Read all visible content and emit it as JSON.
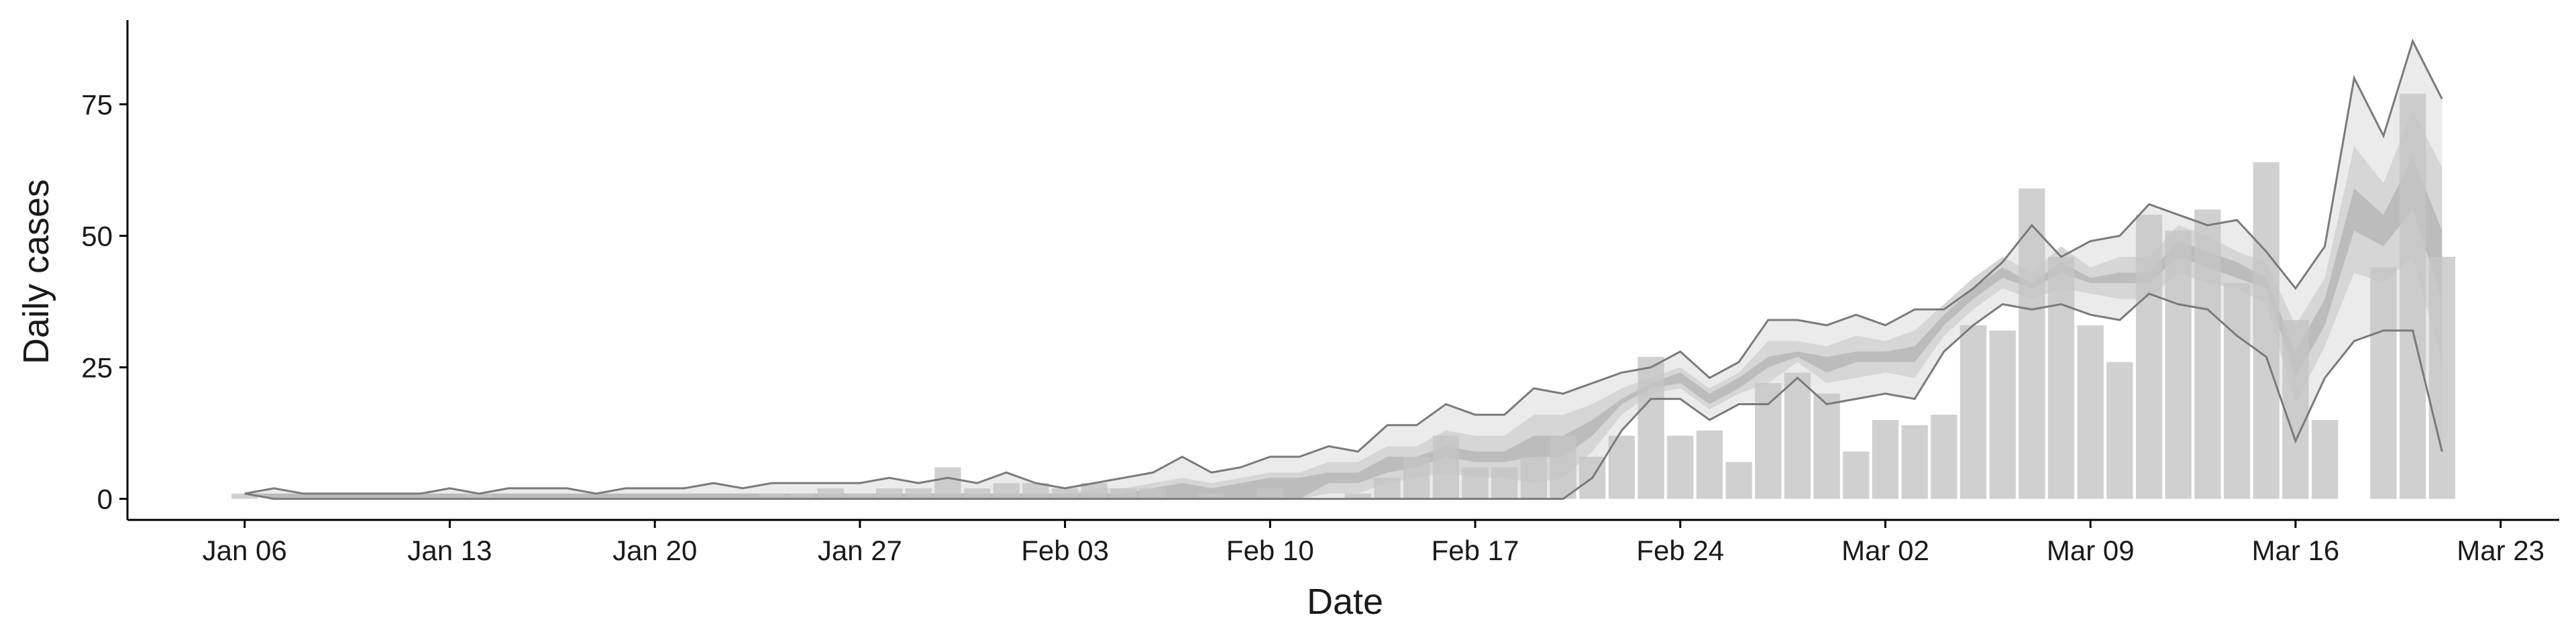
{
  "chart_data": {
    "type": "bar",
    "x_label": "Date",
    "y_label": "Daily cases",
    "x": [
      "Jan 06",
      "Jan 07",
      "Jan 08",
      "Jan 09",
      "Jan 10",
      "Jan 11",
      "Jan 12",
      "Jan 13",
      "Jan 14",
      "Jan 15",
      "Jan 16",
      "Jan 17",
      "Jan 18",
      "Jan 19",
      "Jan 20",
      "Jan 21",
      "Jan 22",
      "Jan 23",
      "Jan 24",
      "Jan 25",
      "Jan 26",
      "Jan 27",
      "Jan 28",
      "Jan 29",
      "Jan 30",
      "Jan 31",
      "Feb 01",
      "Feb 02",
      "Feb 03",
      "Feb 04",
      "Feb 05",
      "Feb 06",
      "Feb 07",
      "Feb 08",
      "Feb 09",
      "Feb 10",
      "Feb 11",
      "Feb 12",
      "Feb 13",
      "Feb 14",
      "Feb 15",
      "Feb 16",
      "Feb 17",
      "Feb 18",
      "Feb 19",
      "Feb 20",
      "Feb 21",
      "Feb 22",
      "Feb 23",
      "Feb 24",
      "Feb 25",
      "Feb 26",
      "Feb 27",
      "Feb 28",
      "Feb 29",
      "Mar 01",
      "Mar 02",
      "Mar 03",
      "Mar 04",
      "Mar 05",
      "Mar 06",
      "Mar 07",
      "Mar 08",
      "Mar 09",
      "Mar 10",
      "Mar 11",
      "Mar 12",
      "Mar 13",
      "Mar 14",
      "Mar 15",
      "Mar 16",
      "Mar 17",
      "Mar 18",
      "Mar 19",
      "Mar 20",
      "Mar 21"
    ],
    "values": [
      1,
      0,
      0,
      0,
      0,
      0,
      0,
      0,
      1,
      0,
      0,
      0,
      0,
      0,
      0,
      0,
      0,
      0,
      1,
      1,
      2,
      1,
      2,
      2,
      6,
      2,
      3,
      3,
      2,
      3,
      2,
      2,
      0,
      1,
      0,
      2,
      0,
      0,
      1,
      4,
      8,
      12,
      6,
      6,
      8,
      12,
      8,
      12,
      27,
      12,
      13,
      7,
      22,
      24,
      20,
      9,
      15,
      14,
      16,
      33,
      32,
      59,
      46,
      33,
      26,
      54,
      51,
      55,
      41,
      64,
      34,
      15,
      0,
      44,
      77,
      46
    ],
    "color": "#c4c4c4",
    "bands": [
      {
        "color": "#ebebeb",
        "line_color": "#7a7a7a",
        "lower": [
          1,
          0,
          0,
          0,
          0,
          0,
          0,
          0,
          0,
          0,
          0,
          0,
          0,
          0,
          0,
          0,
          0,
          0,
          0,
          0,
          0,
          0,
          0,
          0,
          0,
          0,
          0,
          0,
          0,
          0,
          0,
          0,
          0,
          0,
          0,
          0,
          0,
          0,
          0,
          0,
          0,
          0,
          0,
          0,
          0,
          0,
          4,
          13,
          19,
          19,
          15,
          18,
          18,
          23,
          18,
          19,
          20,
          19,
          28,
          33,
          37,
          36,
          37,
          35,
          34,
          39,
          37,
          36,
          31,
          27,
          11,
          23,
          30,
          32,
          32,
          9
        ],
        "upper": [
          1,
          2,
          1,
          1,
          1,
          1,
          1,
          2,
          1,
          2,
          2,
          2,
          1,
          2,
          2,
          2,
          3,
          2,
          3,
          3,
          3,
          3,
          4,
          3,
          4,
          3,
          5,
          3,
          2,
          3,
          4,
          5,
          8,
          5,
          6,
          8,
          8,
          10,
          9,
          14,
          14,
          18,
          16,
          16,
          21,
          20,
          22,
          24,
          25,
          28,
          23,
          26,
          34,
          34,
          33,
          35,
          33,
          36,
          36,
          40,
          45,
          52,
          46,
          49,
          50,
          56,
          54,
          52,
          53,
          47,
          40,
          48,
          80,
          69,
          87,
          76
        ]
      },
      {
        "color": "#d6d6d6",
        "lower": [
          1,
          0,
          0,
          0,
          0,
          0,
          0,
          0,
          0,
          0,
          0,
          0,
          0,
          0,
          0,
          0,
          0,
          0,
          0,
          0,
          0,
          0,
          0,
          0,
          0,
          0,
          0,
          0,
          0,
          0,
          0,
          0,
          0,
          0,
          0,
          0,
          0,
          1,
          1,
          3,
          4,
          5,
          4,
          4,
          3,
          4,
          9,
          16,
          20,
          21,
          17,
          20,
          22,
          26,
          22,
          23,
          24,
          23,
          31,
          36,
          40,
          38,
          40,
          39,
          38,
          38,
          43,
          41,
          40,
          37,
          18,
          29,
          43,
          41,
          46,
          26
        ],
        "upper": [
          1,
          1,
          1,
          1,
          1,
          1,
          1,
          1,
          1,
          1,
          1,
          1,
          1,
          1,
          1,
          1,
          1,
          1,
          1,
          1,
          1,
          1,
          1,
          1,
          1,
          1,
          1,
          1,
          1,
          2,
          2,
          3,
          4,
          3,
          4,
          5,
          5,
          7,
          7,
          10,
          10,
          13,
          12,
          12,
          16,
          16,
          18,
          21,
          23,
          25,
          21,
          24,
          30,
          30,
          29,
          31,
          30,
          32,
          37,
          42,
          46,
          43,
          48,
          44,
          46,
          46,
          52,
          50,
          47,
          45,
          33,
          42,
          67,
          60,
          74,
          63
        ]
      },
      {
        "color": "#bcbcbc",
        "lower": [
          1,
          0,
          0,
          0,
          0,
          0,
          0,
          0,
          0,
          0,
          0,
          0,
          0,
          0,
          0,
          0,
          0,
          0,
          0,
          0,
          0,
          0,
          0,
          0,
          0,
          0,
          0,
          0,
          0,
          0,
          0,
          0,
          0,
          0,
          0,
          0,
          0,
          3,
          3,
          5,
          6,
          8,
          7,
          7,
          8,
          8,
          12,
          18,
          21,
          22,
          18,
          21,
          25,
          27,
          24,
          26,
          26,
          26,
          33,
          38,
          42,
          40,
          43,
          41,
          41,
          41,
          46,
          44,
          42,
          40,
          23,
          33,
          51,
          48,
          55,
          38
        ],
        "upper": [
          1,
          1,
          1,
          1,
          1,
          1,
          1,
          1,
          1,
          1,
          1,
          1,
          1,
          1,
          1,
          1,
          1,
          1,
          1,
          1,
          1,
          1,
          1,
          1,
          1,
          1,
          1,
          1,
          1,
          1,
          1,
          2,
          3,
          2,
          3,
          4,
          4,
          5,
          5,
          8,
          8,
          10,
          9,
          9,
          12,
          12,
          15,
          19,
          22,
          24,
          20,
          23,
          27,
          28,
          27,
          28,
          28,
          29,
          35,
          40,
          44,
          41,
          45,
          42,
          43,
          43,
          49,
          47,
          45,
          42,
          28,
          38,
          59,
          54,
          65,
          51
        ]
      }
    ],
    "xlim": [
      "Jan 02",
      "Mar 25"
    ],
    "xticks": [
      "Jan 06",
      "Jan 13",
      "Jan 20",
      "Jan 27",
      "Feb 03",
      "Feb 10",
      "Feb 17",
      "Feb 24",
      "Mar 02",
      "Mar 09",
      "Mar 16",
      "Mar 23"
    ],
    "ylim": [
      -4,
      91
    ],
    "yticks": [
      0,
      25,
      50,
      75
    ],
    "grid": false
  }
}
